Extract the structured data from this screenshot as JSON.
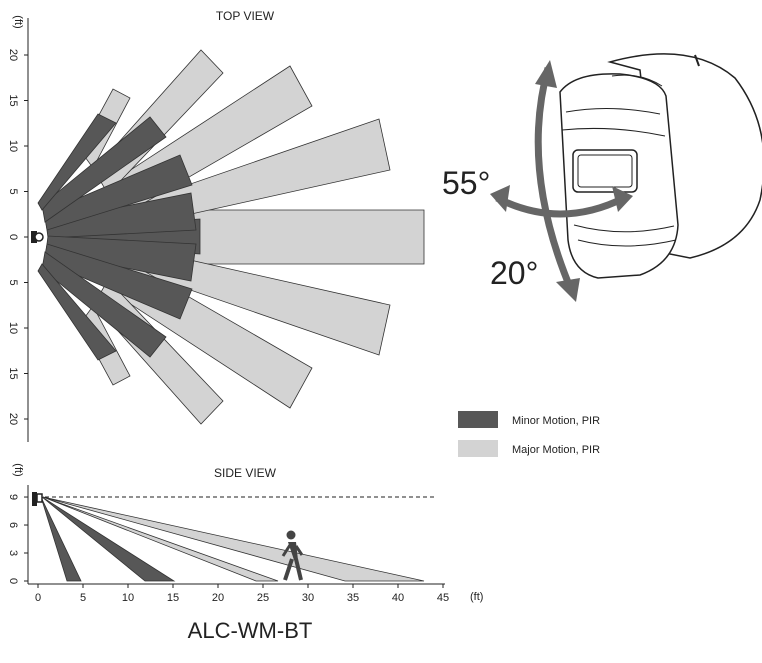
{
  "top_view": {
    "title": "TOP VIEW",
    "unit": "(ft)",
    "ticks": [
      "20",
      "15",
      "10",
      "5",
      "0",
      "5",
      "10",
      "15",
      "20"
    ],
    "tick_values": [
      20,
      15,
      10,
      5,
      0,
      -5,
      -10,
      -15,
      -20
    ]
  },
  "side_view": {
    "title": "SIDE VIEW",
    "y_unit": "(ft)",
    "x_unit": "(ft)",
    "y_ticks": [
      "9",
      "6",
      "3",
      "0"
    ],
    "x_ticks": [
      "0",
      "5",
      "10",
      "15",
      "20",
      "25",
      "30",
      "35",
      "40",
      "45"
    ],
    "mount_height_ft": 9
  },
  "legend": {
    "minor": "Minor Motion, PIR",
    "major": "Major Motion, PIR"
  },
  "adjust": {
    "horizontal": "55°",
    "vertical": "20°"
  },
  "model": "ALC-WM-BT",
  "colors": {
    "minor": "#575757",
    "major": "#d3d3d3",
    "outline": "#333333"
  }
}
